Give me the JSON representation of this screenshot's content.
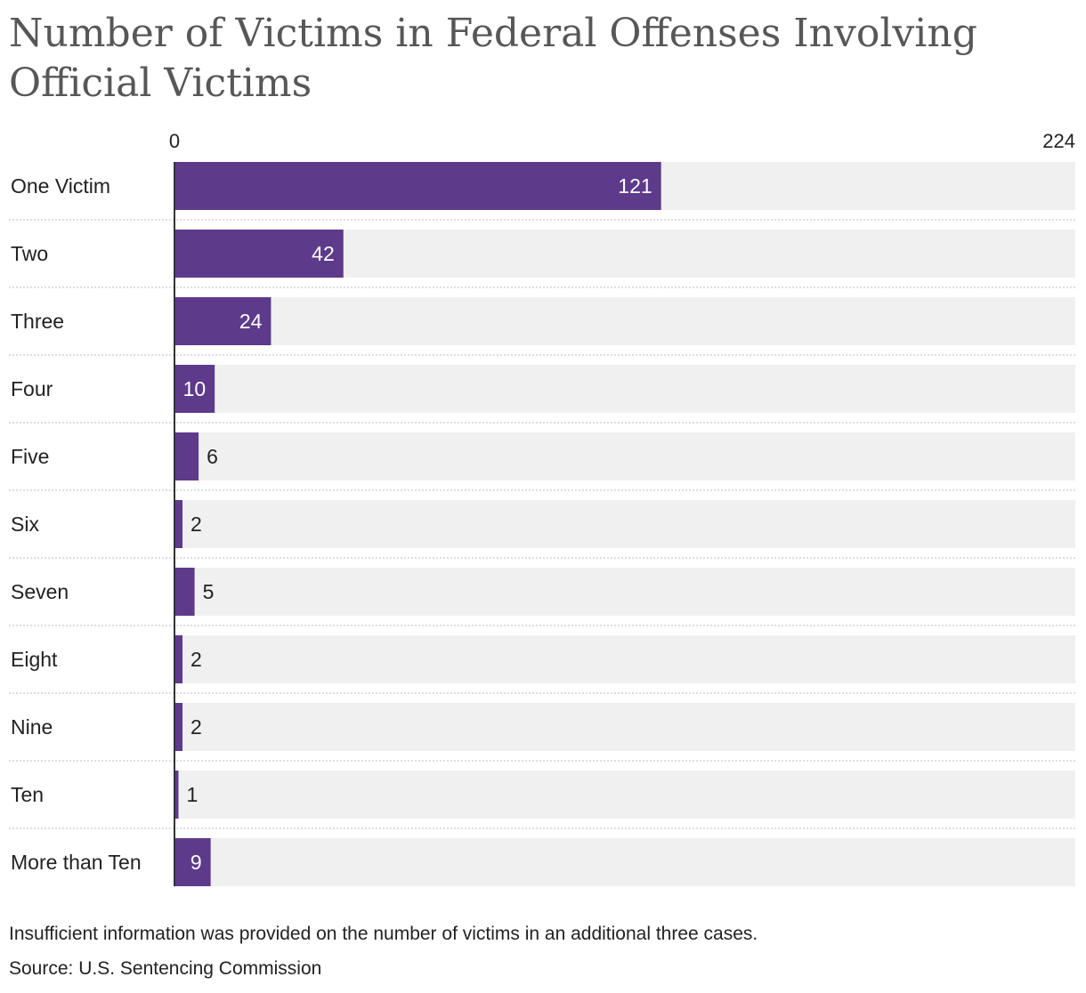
{
  "chart_data": {
    "type": "bar",
    "orientation": "horizontal",
    "title": "Number of Victims in Federal Offenses Involving Official Victims",
    "categories": [
      "One Victim",
      "Two",
      "Three",
      "Four",
      "Five",
      "Six",
      "Seven",
      "Eight",
      "Nine",
      "Ten",
      "More than Ten"
    ],
    "values": [
      121,
      42,
      24,
      10,
      6,
      2,
      5,
      2,
      2,
      1,
      9
    ],
    "axis_min_label": "0",
    "axis_max_label": "224",
    "xlim": [
      0,
      224
    ],
    "xlabel": "",
    "ylabel": "",
    "grid": false,
    "bar_color": "#5e3a8a",
    "track_color": "#f0f0f0"
  },
  "footer": {
    "note": "Insufficient information was provided on the number of victims in an additional three cases.",
    "source": "Source: U.S. Sentencing Commission"
  }
}
